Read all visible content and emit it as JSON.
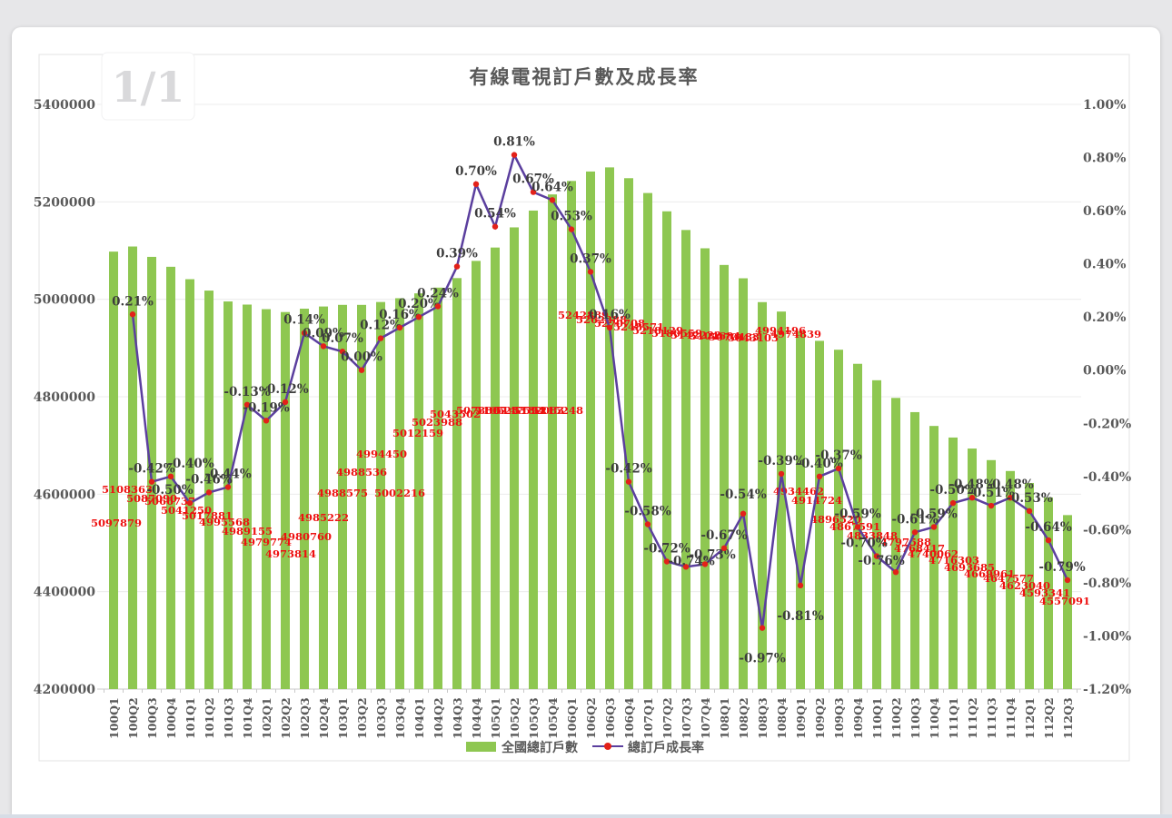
{
  "page": {
    "page_indicator": "1/1"
  },
  "chart_data": {
    "type": "combo-bar-line",
    "title": "有線電視訂戶數及成長率",
    "legend_position": "bottom",
    "grid": true,
    "categories": [
      "100Q1",
      "100Q2",
      "100Q3",
      "100Q4",
      "101Q1",
      "101Q2",
      "101Q3",
      "101Q4",
      "102Q1",
      "102Q2",
      "102Q3",
      "102Q4",
      "103Q1",
      "103Q2",
      "103Q3",
      "103Q4",
      "104Q1",
      "104Q2",
      "104Q3",
      "104Q4",
      "105Q1",
      "105Q2",
      "105Q3",
      "105Q4",
      "106Q1",
      "106Q2",
      "106Q3",
      "106Q4",
      "107Q1",
      "107Q2",
      "107Q3",
      "107Q4",
      "108Q1",
      "108Q2",
      "108Q3",
      "108Q4",
      "109Q1",
      "109Q2",
      "109Q3",
      "109Q4",
      "110Q1",
      "110Q2",
      "110Q3",
      "110Q4",
      "111Q1",
      "111Q2",
      "111Q3",
      "111Q4",
      "112Q1",
      "112Q2",
      "112Q3"
    ],
    "series": [
      {
        "name": "全國總訂戶數",
        "type": "bar",
        "color": "#8ec751",
        "label_color": "#ee1111",
        "values": [
          5097879,
          5108363,
          5087090,
          5066737,
          5041250,
          5017881,
          4995568,
          4989155,
          4979774,
          4973814,
          4980760,
          4985222,
          4988575,
          4988536,
          4994450,
          5002216,
          5012159,
          5023988,
          5043502,
          5078807,
          5106233,
          5147594,
          5182083,
          5215248,
          5242889,
          5262288,
          5270708,
          5248571,
          5218129,
          5180559,
          5142222,
          5104684,
          5070483,
          5043103,
          4994196,
          4974839,
          4934462,
          4914724,
          4896520,
          4867591,
          4833848,
          4797588,
          4768417,
          4740062,
          4716303,
          4693685,
          4669961,
          4647577,
          4623040,
          4593341,
          4557091
        ]
      },
      {
        "name": "總訂戶成長率",
        "type": "line",
        "color": "#5b3f9e",
        "marker_color": "#e32119",
        "label_color": "#3d3d3d",
        "values_pct": [
          null,
          0.21,
          -0.42,
          -0.4,
          -0.5,
          -0.46,
          -0.44,
          -0.13,
          -0.19,
          -0.12,
          0.14,
          0.09,
          0.07,
          0.0,
          0.12,
          0.16,
          0.2,
          0.24,
          0.39,
          0.7,
          0.54,
          0.81,
          0.67,
          0.64,
          0.53,
          0.37,
          0.16,
          -0.42,
          -0.58,
          -0.72,
          -0.74,
          -0.73,
          -0.67,
          -0.54,
          -0.97,
          -0.39,
          -0.81,
          -0.4,
          -0.37,
          -0.59,
          -0.7,
          -0.76,
          -0.61,
          -0.59,
          -0.5,
          -0.48,
          -0.51,
          -0.48,
          -0.53,
          -0.64,
          -0.79
        ]
      }
    ],
    "left_axis": {
      "min": 4200000,
      "max": 5400000,
      "step": 200000,
      "ticks": [
        "5400000",
        "5200000",
        "5000000",
        "4800000",
        "4600000",
        "4400000",
        "4200000"
      ]
    },
    "right_axis": {
      "min": -1.2,
      "max": 1.0,
      "step": 0.2,
      "ticks": [
        "1.00%",
        "0.80%",
        "0.60%",
        "0.40%",
        "0.20%",
        "0.00%",
        "-0.20%",
        "-0.40%",
        "-0.60%",
        "-0.80%",
        "-1.00%",
        "-1.20%"
      ]
    }
  }
}
